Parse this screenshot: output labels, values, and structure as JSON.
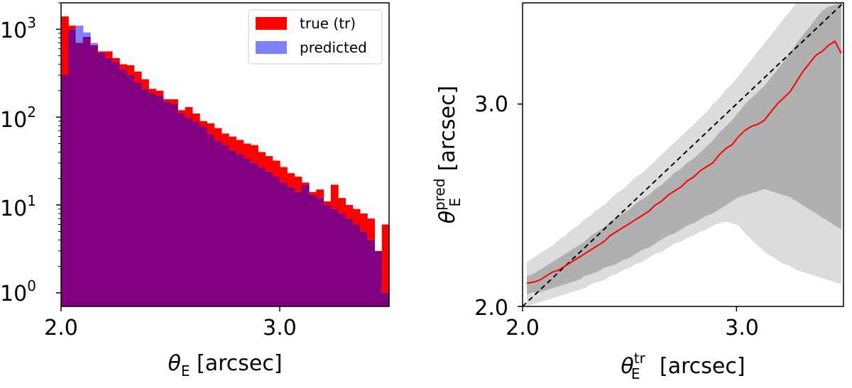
{
  "chart_data": [
    {
      "type": "histogram",
      "xscale": "linear",
      "yscale": "log",
      "xlim": [
        2.0,
        3.5
      ],
      "ylim": [
        0.7,
        2000
      ],
      "xticks": [
        2.0,
        3.0
      ],
      "xtick_labels": [
        "2.0",
        "3.0"
      ],
      "yticks": [
        1,
        10,
        100,
        1000
      ],
      "ytick_labels": [
        "10",
        "10",
        "10",
        "10"
      ],
      "ytick_exponents": [
        "0",
        "1",
        "2",
        "3"
      ],
      "xlabel_main": "θ",
      "xlabel_sub": "E",
      "xlabel_unit": " [arcsec]",
      "legend_position": "upper right",
      "legend": [
        {
          "label": "true (tr)",
          "color": "#ff0000"
        },
        {
          "label": "predicted",
          "color": "#8080ff"
        }
      ],
      "overlap_color": "#800080",
      "bin_edges": [
        2.0,
        2.0333,
        2.0667,
        2.1,
        2.1333,
        2.1667,
        2.2,
        2.2333,
        2.2667,
        2.3,
        2.3333,
        2.3667,
        2.4,
        2.4333,
        2.4667,
        2.5,
        2.5333,
        2.5667,
        2.6,
        2.6333,
        2.6667,
        2.7,
        2.7333,
        2.7667,
        2.8,
        2.8333,
        2.8667,
        2.9,
        2.9333,
        2.9667,
        3.0,
        3.0333,
        3.0667,
        3.1,
        3.1333,
        3.1667,
        3.2,
        3.2333,
        3.2667,
        3.3,
        3.3333,
        3.3667,
        3.4,
        3.4333,
        3.4667,
        3.5
      ],
      "series": [
        {
          "name": "true (tr)",
          "color": "#ff0000",
          "values": [
            1400,
            1100,
            700,
            820,
            660,
            560,
            560,
            470,
            400,
            390,
            330,
            270,
            210,
            200,
            160,
            160,
            120,
            130,
            110,
            90,
            85,
            75,
            65,
            60,
            55,
            50,
            48,
            40,
            36,
            32,
            27,
            23,
            21,
            18,
            14,
            15,
            11,
            17,
            12,
            10,
            9,
            8,
            7,
            3,
            6
          ]
        },
        {
          "name": "predicted",
          "color": "#8080ff",
          "values": [
            300,
            1000,
            1100,
            920,
            700,
            540,
            470,
            420,
            350,
            300,
            250,
            210,
            185,
            175,
            150,
            140,
            110,
            98,
            88,
            78,
            64,
            54,
            48,
            42,
            38,
            34,
            30,
            27,
            24,
            21,
            18,
            16,
            14,
            17,
            13,
            12,
            10,
            9,
            8,
            7,
            6,
            5,
            4,
            3,
            1
          ]
        }
      ]
    },
    {
      "type": "line",
      "xlim": [
        2.0,
        3.5
      ],
      "ylim": [
        2.0,
        3.5
      ],
      "xticks": [
        2.0,
        3.0
      ],
      "xtick_labels": [
        "2.0",
        "3.0"
      ],
      "yticks": [
        2.0,
        3.0
      ],
      "ytick_labels": [
        "2.0",
        "3.0"
      ],
      "xlabel_main": "θ",
      "xlabel_sub": "E",
      "xlabel_sup": "tr",
      "xlabel_unit": " [arcsec]",
      "ylabel_main": "θ",
      "ylabel_sub": "E",
      "ylabel_sup": "pred",
      "ylabel_unit": " [arcsec]",
      "identity_line": {
        "style": "dashed",
        "color": "#000000"
      },
      "median_color": "#ff0000",
      "inner_band_color": "#b0b0b0",
      "outer_band_color": "#dcdcdc",
      "x": [
        2.02,
        2.05,
        2.08,
        2.11,
        2.14,
        2.17,
        2.2,
        2.23,
        2.26,
        2.29,
        2.32,
        2.35,
        2.38,
        2.41,
        2.44,
        2.47,
        2.5,
        2.53,
        2.56,
        2.59,
        2.62,
        2.65,
        2.68,
        2.71,
        2.74,
        2.77,
        2.8,
        2.83,
        2.86,
        2.89,
        2.92,
        2.95,
        2.98,
        3.01,
        3.04,
        3.07,
        3.1,
        3.13,
        3.16,
        3.19,
        3.22,
        3.25,
        3.28,
        3.31,
        3.34,
        3.37,
        3.4,
        3.43,
        3.46,
        3.49
      ],
      "median": [
        2.115,
        2.12,
        2.13,
        2.15,
        2.17,
        2.18,
        2.2,
        2.22,
        2.24,
        2.26,
        2.28,
        2.3,
        2.32,
        2.35,
        2.37,
        2.39,
        2.41,
        2.43,
        2.45,
        2.47,
        2.5,
        2.52,
        2.55,
        2.57,
        2.59,
        2.62,
        2.64,
        2.67,
        2.69,
        2.71,
        2.75,
        2.78,
        2.8,
        2.84,
        2.87,
        2.89,
        2.9,
        2.92,
        2.96,
        3.0,
        3.03,
        3.06,
        3.11,
        3.16,
        3.2,
        3.24,
        3.26,
        3.29,
        3.31,
        3.25
      ],
      "inner_low": [
        2.06,
        2.07,
        2.07,
        2.08,
        2.09,
        2.1,
        2.11,
        2.12,
        2.13,
        2.15,
        2.16,
        2.17,
        2.19,
        2.2,
        2.21,
        2.23,
        2.24,
        2.26,
        2.28,
        2.29,
        2.31,
        2.33,
        2.35,
        2.36,
        2.38,
        2.4,
        2.41,
        2.43,
        2.45,
        2.46,
        2.48,
        2.5,
        2.52,
        2.54,
        2.55,
        2.56,
        2.57,
        2.58,
        2.57,
        2.56,
        2.55,
        2.54,
        2.52,
        2.5,
        2.48,
        2.46,
        2.44,
        2.42,
        2.4,
        2.38
      ],
      "inner_high": [
        2.15,
        2.16,
        2.18,
        2.2,
        2.22,
        2.24,
        2.26,
        2.28,
        2.3,
        2.32,
        2.35,
        2.37,
        2.39,
        2.42,
        2.44,
        2.46,
        2.48,
        2.51,
        2.53,
        2.55,
        2.58,
        2.6,
        2.63,
        2.66,
        2.68,
        2.71,
        2.73,
        2.76,
        2.79,
        2.82,
        2.86,
        2.89,
        2.92,
        2.96,
        3.0,
        3.03,
        3.06,
        3.09,
        3.13,
        3.17,
        3.21,
        3.25,
        3.3,
        3.34,
        3.38,
        3.42,
        3.46,
        3.48,
        3.49,
        3.5
      ],
      "outer_low": [
        2.0,
        2.01,
        2.02,
        2.03,
        2.04,
        2.05,
        2.06,
        2.07,
        2.08,
        2.09,
        2.11,
        2.12,
        2.13,
        2.15,
        2.16,
        2.18,
        2.19,
        2.21,
        2.22,
        2.24,
        2.26,
        2.27,
        2.29,
        2.31,
        2.32,
        2.34,
        2.35,
        2.37,
        2.38,
        2.4,
        2.41,
        2.42,
        2.41,
        2.4,
        2.36,
        2.33,
        2.3,
        2.27,
        2.25,
        2.23,
        2.21,
        2.2,
        2.18,
        2.17,
        2.16,
        2.15,
        2.14,
        2.13,
        2.12,
        2.11
      ],
      "outer_high": [
        2.22,
        2.24,
        2.26,
        2.28,
        2.3,
        2.33,
        2.35,
        2.38,
        2.4,
        2.43,
        2.45,
        2.48,
        2.5,
        2.53,
        2.56,
        2.58,
        2.61,
        2.64,
        2.66,
        2.69,
        2.72,
        2.75,
        2.78,
        2.81,
        2.84,
        2.87,
        2.9,
        2.93,
        2.96,
        3.0,
        3.03,
        3.07,
        3.1,
        3.14,
        3.18,
        3.22,
        3.26,
        3.3,
        3.34,
        3.38,
        3.42,
        3.46,
        3.5,
        3.5,
        3.5,
        3.5,
        3.5,
        3.5,
        3.5,
        3.5
      ]
    }
  ]
}
